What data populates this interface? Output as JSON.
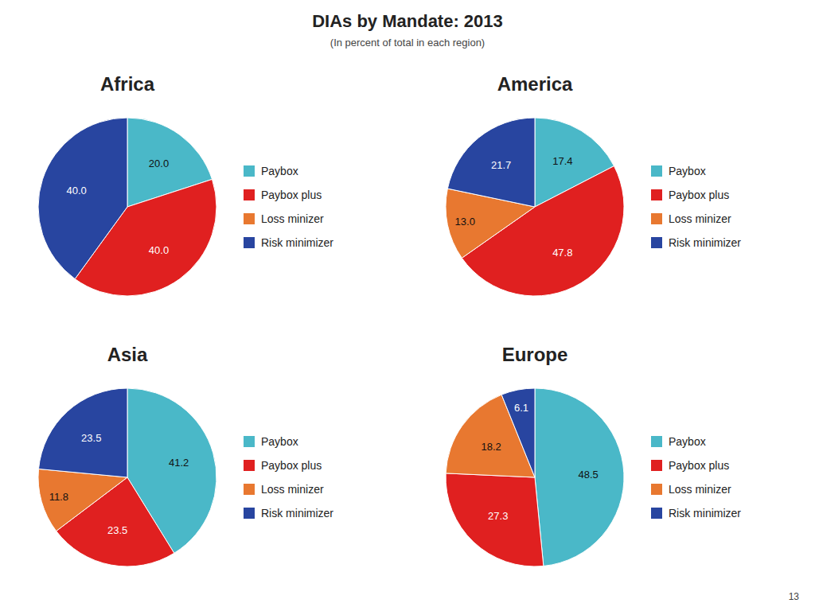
{
  "chart_data": {
    "type": "pie",
    "title": "DIAs by Mandate: 2013",
    "subtitle": "(In percent of total in each region)",
    "annotations": [
      "13"
    ],
    "categories": [
      "Paybox",
      "Paybox plus",
      "Loss minizer",
      "Risk minimizer"
    ],
    "colors": [
      "#4AB8C8",
      "#E02020",
      "#E87830",
      "#2845A0"
    ],
    "data_labels": true,
    "legend": "right",
    "series": [
      {
        "name": "Africa",
        "values": [
          20.0,
          40.0,
          0.0,
          40.0
        ],
        "value_labels": [
          "20.0",
          "40.0",
          null,
          "40.0"
        ]
      },
      {
        "name": "America",
        "values": [
          17.4,
          47.8,
          13.0,
          21.7
        ],
        "value_labels": [
          "17.4",
          "47.8",
          "13.0",
          "21.7"
        ]
      },
      {
        "name": "Asia",
        "values": [
          41.2,
          23.5,
          11.8,
          23.5
        ],
        "value_labels": [
          "41.2",
          "23.5",
          "11.8",
          "23.5"
        ]
      },
      {
        "name": "Europe",
        "values": [
          48.5,
          27.3,
          18.2,
          6.1
        ],
        "value_labels": [
          "48.5",
          "27.3",
          "18.2",
          "6.1"
        ]
      }
    ]
  }
}
